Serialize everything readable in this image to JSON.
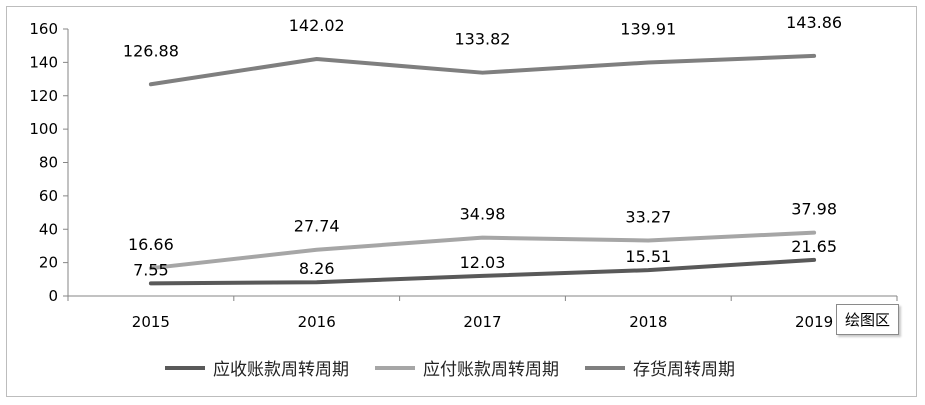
{
  "chart_data": {
    "type": "line",
    "categories": [
      "2015",
      "2016",
      "2017",
      "2018",
      "2019"
    ],
    "ylim": [
      0,
      160
    ],
    "yticks": [
      0,
      20,
      40,
      60,
      80,
      100,
      120,
      140,
      160
    ],
    "grid": false,
    "legend_position": "bottom",
    "series": [
      {
        "name": "应收账款周转周期",
        "values": [
          7.55,
          8.26,
          12.03,
          15.51,
          21.65
        ],
        "labels": [
          "7.55",
          "8.26",
          "12.03",
          "15.51",
          "21.65"
        ],
        "color": "#595959"
      },
      {
        "name": "应付账款周转周期",
        "values": [
          16.66,
          27.74,
          34.98,
          33.27,
          37.98
        ],
        "labels": [
          "16.66",
          "27.74",
          "34.98",
          "33.27",
          "37.98"
        ],
        "color": "#a6a6a6"
      },
      {
        "name": "存货周转周期",
        "values": [
          126.88,
          142.02,
          133.82,
          139.91,
          143.86
        ],
        "labels": [
          "126.88",
          "142.02",
          "133.82",
          "139.91",
          "143.86"
        ],
        "color": "#7f7f7f"
      }
    ]
  },
  "tooltip": {
    "text": "绘图区"
  }
}
